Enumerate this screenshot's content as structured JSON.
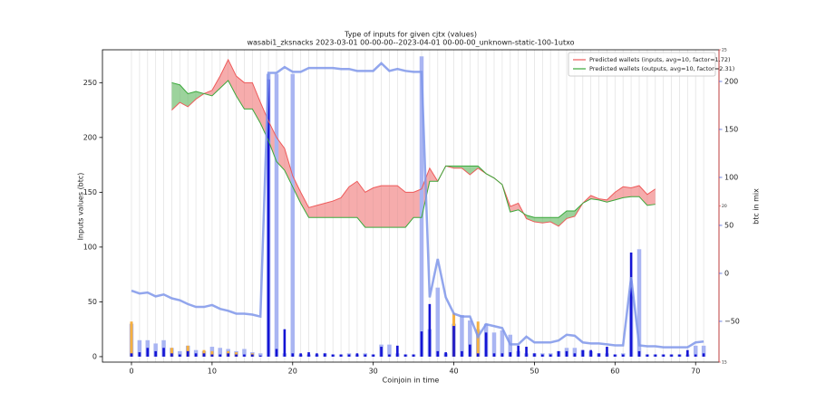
{
  "chart_data": {
    "type": "combo",
    "title": "Type of inputs for given cjtx (values)",
    "subtitle": "wasabi1_zksnacks 2023-03-01 00-00-00--2023-04-01 00-00-00_unknown-static-100-1utxo",
    "x_label": "Coinjoin in time",
    "y_label": "Inputs values (btc)",
    "y2_label": "btc in mix",
    "x": [
      0,
      1,
      2,
      3,
      4,
      5,
      6,
      7,
      8,
      9,
      10,
      11,
      12,
      13,
      14,
      15,
      16,
      17,
      18,
      19,
      20,
      21,
      22,
      23,
      24,
      25,
      26,
      27,
      28,
      29,
      30,
      31,
      32,
      33,
      34,
      35,
      36,
      37,
      38,
      39,
      40,
      41,
      42,
      43,
      44,
      45,
      46,
      47,
      48,
      49,
      50,
      51,
      52,
      53,
      54,
      55,
      56,
      57,
      58,
      59,
      60,
      61,
      62,
      63,
      64,
      65,
      66,
      67,
      68,
      69,
      70,
      71
    ],
    "xlim": [
      -3.6,
      72.9
    ],
    "xticks": [
      0,
      10,
      20,
      30,
      40,
      50,
      60,
      70
    ],
    "ylim": [
      -5,
      280
    ],
    "yticks": [
      0,
      50,
      100,
      150,
      200,
      250
    ],
    "y2lim": [
      -92.5,
      233
    ],
    "y2ticks": [
      {
        "value": -50,
        "label": "−50"
      },
      0,
      50,
      100,
      150,
      200
    ],
    "y2_color": "#4a63d8",
    "y3lim": [
      15,
      25
    ],
    "y3ticks": [
      15,
      20,
      25
    ],
    "y3_color": "#e04040",
    "grid_x": true,
    "legend": "upper right",
    "series": [
      {
        "name": "Predicted wallets (inputs, avg=10, factor=1.72)",
        "mark": "line",
        "axis": "y",
        "color": "#ee5a5a",
        "values": [
          null,
          null,
          null,
          null,
          null,
          225,
          232,
          228,
          235,
          240,
          243,
          256,
          271,
          256,
          250,
          250,
          232,
          215,
          200,
          190,
          165,
          150,
          136,
          138,
          140,
          142,
          145,
          155,
          160,
          150,
          154,
          156,
          156,
          156,
          150,
          150,
          153,
          172,
          160,
          174,
          172,
          172,
          166,
          172,
          167,
          163,
          157,
          137,
          140,
          126,
          123,
          122,
          123,
          119,
          126,
          128,
          140,
          147,
          144,
          143,
          150,
          155,
          154,
          156,
          148,
          153,
          null,
          null,
          null,
          null,
          null,
          null
        ]
      },
      {
        "name": "Predicted wallets (outputs, avg=10, factor=2.31)",
        "mark": "line",
        "axis": "y",
        "color": "#3aa83a",
        "values": [
          null,
          null,
          null,
          null,
          null,
          250,
          248,
          240,
          242,
          240,
          238,
          245,
          252,
          238,
          226,
          226,
          213,
          197,
          178,
          170,
          155,
          140,
          127,
          127,
          127,
          127,
          127,
          127,
          127,
          118,
          118,
          118,
          118,
          118,
          118,
          127,
          127,
          160,
          160,
          174,
          174,
          174,
          174,
          174,
          167,
          163,
          157,
          132,
          134,
          129,
          127,
          127,
          127,
          127,
          133,
          133,
          140,
          144,
          143,
          141,
          143,
          145,
          146,
          146,
          138,
          139,
          null,
          null,
          null,
          null,
          null,
          null
        ]
      },
      {
        "mark": "bar",
        "axis": "y",
        "color": "#a9b5f2",
        "values": [
          30,
          15,
          15,
          12,
          15,
          8,
          5,
          10,
          6,
          5,
          9,
          8,
          7,
          5,
          7,
          4,
          3,
          258,
          258,
          3,
          258,
          2,
          2,
          2,
          3,
          2,
          2,
          3,
          2,
          3,
          2,
          11,
          11,
          3,
          2,
          2,
          274,
          25,
          63,
          3,
          30,
          38,
          33,
          25,
          30,
          22,
          24,
          20,
          5,
          3,
          3,
          3,
          3,
          5,
          8,
          8,
          6,
          5,
          3,
          3,
          2,
          3,
          60,
          98,
          2,
          2,
          2,
          2,
          2,
          2,
          10,
          10
        ]
      },
      {
        "mark": "bar",
        "axis": "y",
        "color": "#f5b041",
        "values": [
          32,
          null,
          null,
          null,
          null,
          8,
          null,
          10,
          null,
          6,
          5,
          null,
          5,
          4,
          null,
          3,
          null,
          null,
          null,
          null,
          null,
          null,
          null,
          null,
          null,
          null,
          null,
          null,
          null,
          null,
          null,
          null,
          null,
          null,
          null,
          null,
          null,
          null,
          null,
          null,
          40,
          null,
          null,
          32,
          null,
          null,
          null,
          null,
          null,
          null,
          null,
          null,
          null,
          null,
          null,
          null,
          null,
          null,
          null,
          null,
          null,
          null,
          null,
          null,
          null,
          null,
          null,
          null,
          null,
          null,
          null,
          null
        ]
      },
      {
        "mark": "bar",
        "axis": "y",
        "color": "#1414d4",
        "values": [
          3,
          4,
          8,
          5,
          8,
          3,
          2,
          5,
          3,
          3,
          2,
          2,
          3,
          2,
          2,
          2,
          1,
          253,
          7,
          25,
          3,
          3,
          4,
          3,
          3,
          2,
          2,
          2,
          3,
          2,
          2,
          9,
          2,
          10,
          2,
          2,
          23,
          48,
          5,
          4,
          28,
          5,
          11,
          3,
          22,
          3,
          3,
          4,
          10,
          9,
          3,
          2,
          2,
          5,
          5,
          3,
          6,
          6,
          3,
          9,
          2,
          2,
          95,
          5,
          2,
          2,
          2,
          2,
          2,
          6,
          2,
          3
        ]
      },
      {
        "mark": "line",
        "axis": "y2",
        "color": "#7f97ea",
        "values": [
          -18,
          -21,
          -20,
          -24,
          -22,
          -26,
          -28,
          -32,
          -35,
          -35,
          -33,
          -37,
          -39,
          -42,
          -42,
          -43,
          -45,
          209,
          209,
          215,
          210,
          210,
          214,
          214,
          214,
          214,
          213,
          213,
          211,
          211,
          211,
          219,
          211,
          213,
          211,
          210,
          210,
          -25,
          15,
          -25,
          -42,
          -45,
          -45,
          -66,
          -53,
          -55,
          -57,
          -74,
          -74,
          -66,
          -72,
          -72,
          -72,
          -70,
          -64,
          -65,
          -72,
          -73,
          -73,
          -74,
          -75,
          -75,
          -4,
          -75,
          -76,
          -76,
          -77,
          -77,
          -77,
          -77,
          -72,
          -71
        ]
      }
    ]
  }
}
